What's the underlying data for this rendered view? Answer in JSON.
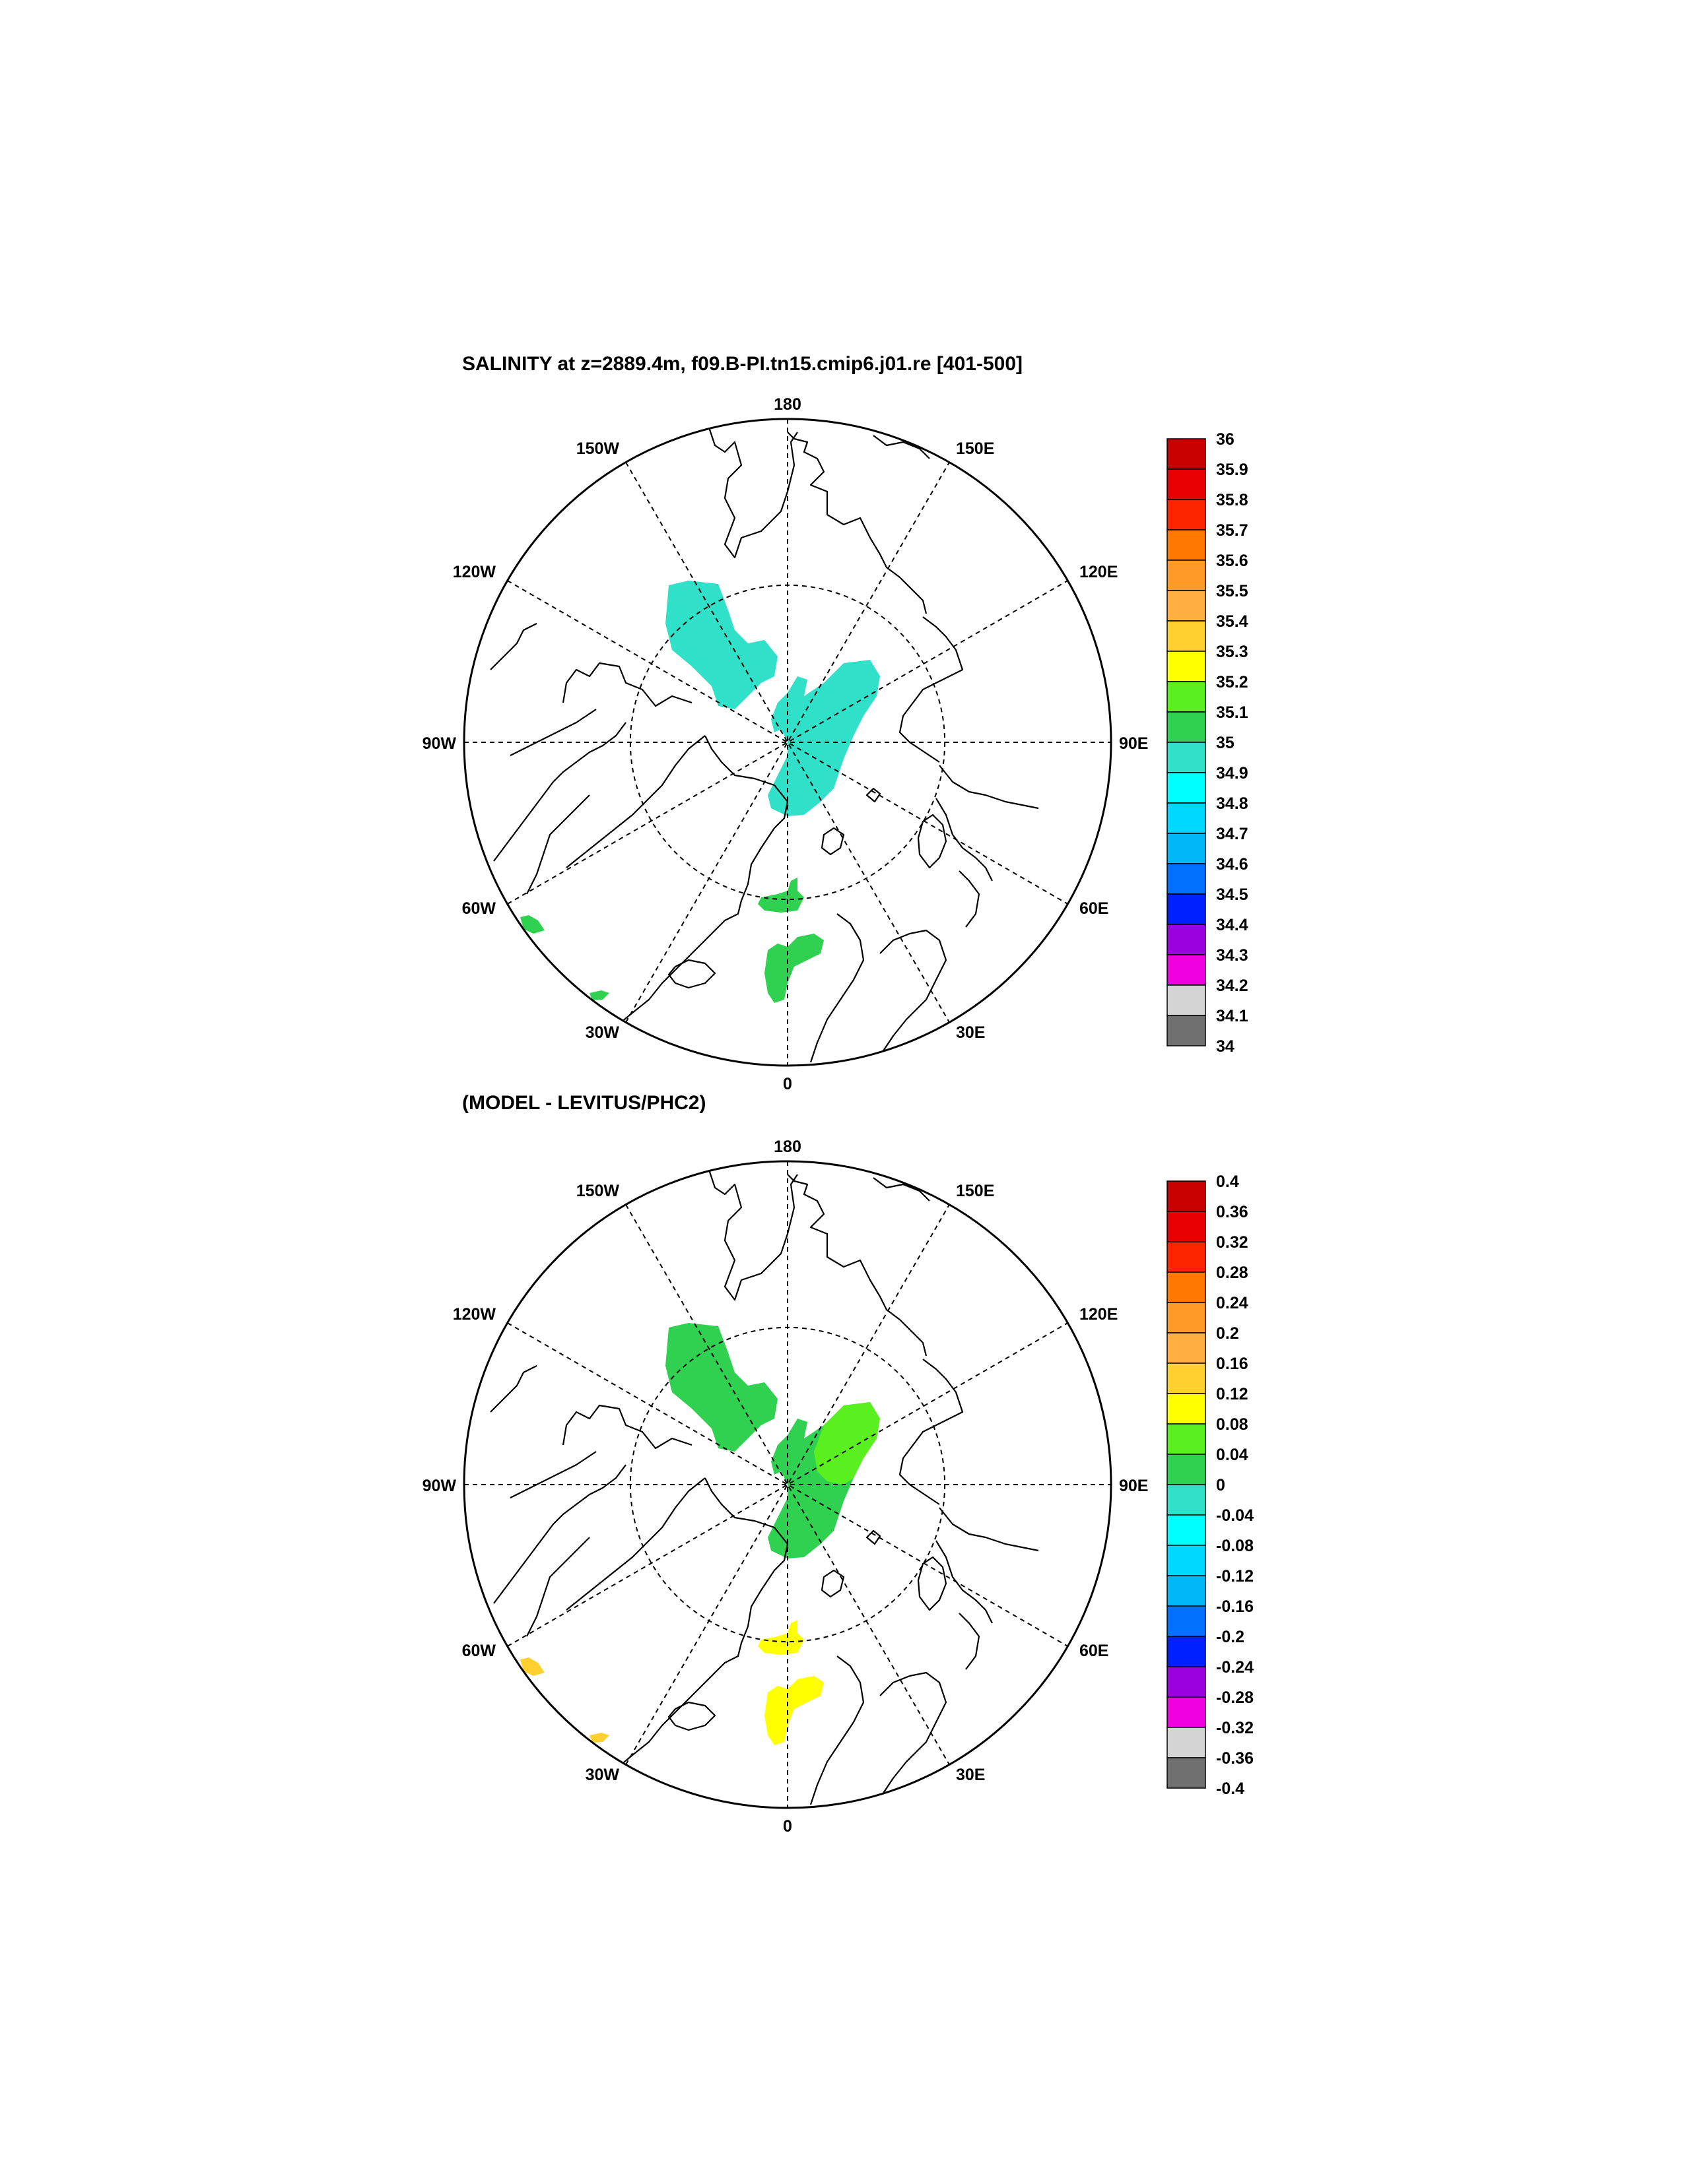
{
  "panels": [
    {
      "title": "SALINITY at z=2889.4m, f09.B-PI.tn15.cmip6.j01.re [401-500]",
      "lon_labels": {
        "top": "180",
        "bottom": "0",
        "left": "90W",
        "right": "90E",
        "nw_upper": "150W",
        "ne_upper": "150E",
        "nw_lower": "120W",
        "ne_lower": "120E",
        "sw_upper": "60W",
        "se_upper": "60E",
        "sw_lower": "30W",
        "se_lower": "30E"
      },
      "colorbar": {
        "labels": [
          "36",
          "35.9",
          "35.8",
          "35.7",
          "35.6",
          "35.5",
          "35.4",
          "35.3",
          "35.2",
          "35.1",
          "35",
          "34.9",
          "34.8",
          "34.7",
          "34.6",
          "34.5",
          "34.4",
          "34.3",
          "34.2",
          "34.1",
          "34"
        ],
        "colors": [
          "#c80000",
          "#e60000",
          "#ff2400",
          "#ff7800",
          "#ff9a28",
          "#ffb040",
          "#ffd030",
          "#ffff00",
          "#5af020",
          "#30d050",
          "#30e0c8",
          "#00ffff",
          "#00d8ff",
          "#00b8f8",
          "#0070ff",
          "#0020ff",
          "#9b00e0",
          "#f000e0",
          "#d4d4d4",
          "#707070"
        ]
      },
      "blobs": [
        {
          "name": "canada-basin",
          "color": "#30e0c8"
        },
        {
          "name": "eurasian-basin",
          "color": "#30e0c8"
        },
        {
          "name": "fram-strait",
          "color": "#30d050"
        },
        {
          "name": "greenland-sea",
          "color": "#30d050"
        },
        {
          "name": "labrador-sea",
          "color": "#30d050"
        },
        {
          "name": "irminger-sea",
          "color": "#30d050"
        }
      ]
    },
    {
      "title": "(MODEL - LEVITUS/PHC2)",
      "lon_labels": {
        "top": "180",
        "bottom": "0",
        "left": "90W",
        "right": "90E",
        "nw_upper": "150W",
        "ne_upper": "150E",
        "nw_lower": "120W",
        "ne_lower": "120E",
        "sw_upper": "60W",
        "se_upper": "60E",
        "sw_lower": "30W",
        "se_lower": "30E"
      },
      "colorbar": {
        "labels": [
          "0.4",
          "0.36",
          "0.32",
          "0.28",
          "0.24",
          "0.2",
          "0.16",
          "0.12",
          "0.08",
          "0.04",
          "0",
          "-0.04",
          "-0.08",
          "-0.12",
          "-0.16",
          "-0.2",
          "-0.24",
          "-0.28",
          "-0.32",
          "-0.36",
          "-0.4"
        ],
        "colors": [
          "#c80000",
          "#e60000",
          "#ff2400",
          "#ff7800",
          "#ff9a28",
          "#ffb040",
          "#ffd030",
          "#ffff00",
          "#5af020",
          "#30d050",
          "#30e0c8",
          "#00ffff",
          "#00d8ff",
          "#00b8f8",
          "#0070ff",
          "#0020ff",
          "#9b00e0",
          "#f000e0",
          "#d4d4d4",
          "#707070"
        ]
      },
      "blobs": [
        {
          "name": "canada-basin",
          "color": "#30d050"
        },
        {
          "name": "eurasian-basin",
          "color": "#30d050"
        },
        {
          "name": "eurasian-basin-north",
          "color": "#5af020"
        },
        {
          "name": "fram-strait",
          "color": "#ffff00"
        },
        {
          "name": "greenland-sea",
          "color": "#ffff00"
        },
        {
          "name": "labrador-sea",
          "color": "#ffd030"
        },
        {
          "name": "irminger-sea",
          "color": "#ffd030"
        }
      ]
    }
  ]
}
